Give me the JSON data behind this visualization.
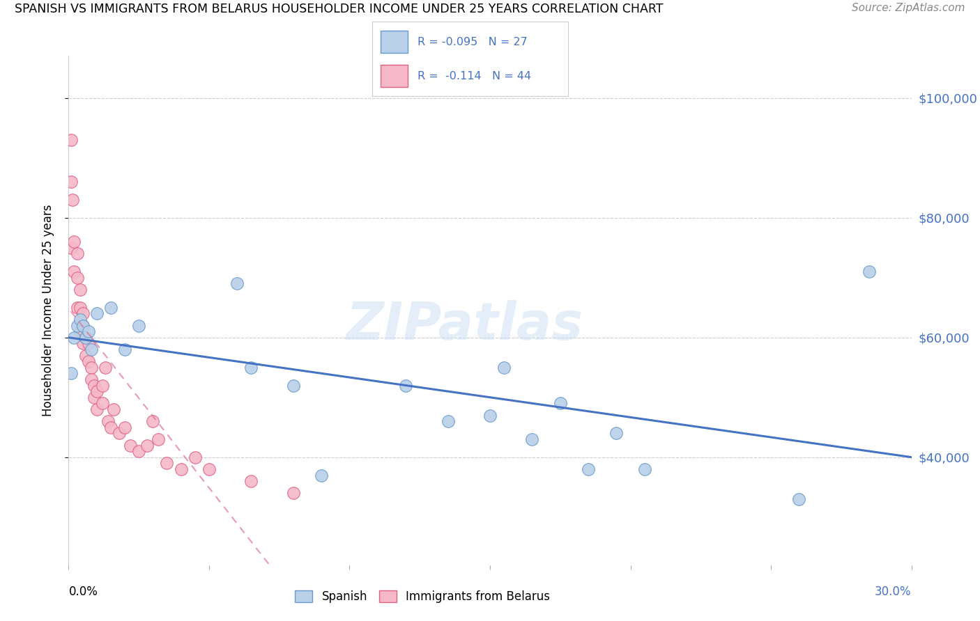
{
  "title": "SPANISH VS IMMIGRANTS FROM BELARUS HOUSEHOLDER INCOME UNDER 25 YEARS CORRELATION CHART",
  "source": "Source: ZipAtlas.com",
  "ylabel": "Householder Income Under 25 years",
  "ytick_labels": [
    "$40,000",
    "$60,000",
    "$80,000",
    "$100,000"
  ],
  "ytick_values": [
    40000,
    60000,
    80000,
    100000
  ],
  "xlim": [
    0.0,
    0.3
  ],
  "ylim": [
    22000,
    107000
  ],
  "legend_label1": "Spanish",
  "legend_label2": "Immigrants from Belarus",
  "R1": -0.095,
  "N1": 27,
  "R2": -0.114,
  "N2": 44,
  "color_spanish_fill": "#b8d0e8",
  "color_spanish_edge": "#6699cc",
  "color_belarus_fill": "#f5b8c8",
  "color_belarus_edge": "#e06080",
  "color_line_spanish": "#4472c4",
  "color_line_belarus": "#e07090",
  "color_right_labels": "#4472c4",
  "watermark": "ZIPatlas",
  "spanish_x": [
    0.001,
    0.002,
    0.003,
    0.004,
    0.005,
    0.006,
    0.007,
    0.008,
    0.01,
    0.015,
    0.02,
    0.025,
    0.06,
    0.065,
    0.08,
    0.09,
    0.12,
    0.135,
    0.15,
    0.155,
    0.165,
    0.175,
    0.185,
    0.195,
    0.205,
    0.26,
    0.285
  ],
  "spanish_y": [
    54000,
    60000,
    62000,
    63000,
    62000,
    60000,
    61000,
    58000,
    64000,
    65000,
    58000,
    62000,
    69000,
    55000,
    52000,
    37000,
    52000,
    46000,
    47000,
    55000,
    43000,
    49000,
    38000,
    44000,
    38000,
    33000,
    71000
  ],
  "belarus_x": [
    0.0008,
    0.001,
    0.001,
    0.0015,
    0.002,
    0.002,
    0.003,
    0.003,
    0.003,
    0.004,
    0.004,
    0.004,
    0.005,
    0.005,
    0.005,
    0.006,
    0.006,
    0.007,
    0.007,
    0.008,
    0.008,
    0.009,
    0.009,
    0.01,
    0.01,
    0.012,
    0.012,
    0.013,
    0.014,
    0.015,
    0.016,
    0.018,
    0.02,
    0.022,
    0.025,
    0.028,
    0.03,
    0.032,
    0.035,
    0.04,
    0.045,
    0.05,
    0.065,
    0.08
  ],
  "belarus_y": [
    93000,
    86000,
    75000,
    83000,
    76000,
    71000,
    74000,
    70000,
    65000,
    68000,
    65000,
    61000,
    64000,
    62000,
    59000,
    60000,
    57000,
    59000,
    56000,
    55000,
    53000,
    52000,
    50000,
    51000,
    48000,
    52000,
    49000,
    55000,
    46000,
    45000,
    48000,
    44000,
    45000,
    42000,
    41000,
    42000,
    46000,
    43000,
    39000,
    38000,
    40000,
    38000,
    36000,
    34000
  ]
}
